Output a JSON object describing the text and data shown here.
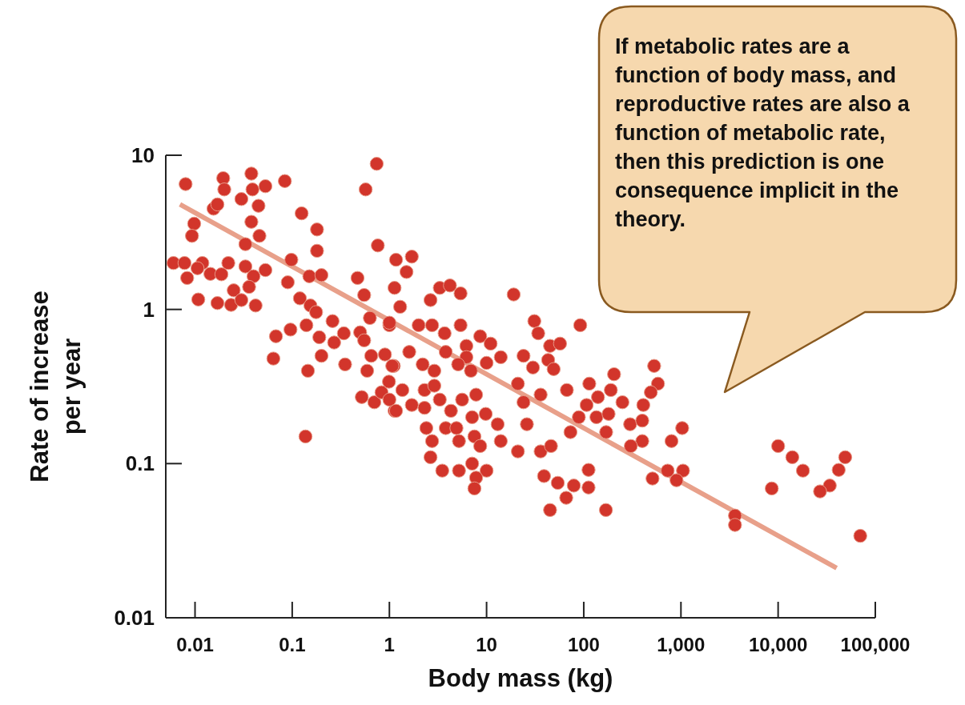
{
  "chart_data": {
    "type": "scatter",
    "xlabel": "Body mass (kg)",
    "ylabel": "Rate of increase per year",
    "annotations": [
      "If metabolic rates are a function of body mass, and reproductive rates are also a function of metabolic rate, then this prediction is one consequence implicit in the theory."
    ],
    "log": "xy",
    "xlim": [
      0.005,
      100000
    ],
    "ylim": [
      0.01,
      10
    ],
    "xticks": [
      0.01,
      0.1,
      1,
      10,
      100,
      {
        "value": 1000,
        "label": "1,000"
      },
      {
        "value": 10000,
        "label": "10,000"
      },
      {
        "value": 100000,
        "label": "100,000"
      }
    ],
    "yticks": [
      0.01,
      0.1,
      1,
      10
    ],
    "series": [
      {
        "marker": "circle",
        "color": "#d2352b",
        "x": [
          0.008,
          0.0195,
          0.02,
          0.038,
          0.039,
          0.053,
          0.084,
          0.03,
          0.0155,
          0.017,
          0.045,
          0.125,
          0.038,
          0.0098,
          0.0093,
          0.046,
          0.18,
          0.033,
          0.18,
          0.74,
          0.57,
          0.76,
          0.098,
          0.006,
          0.0078,
          0.0119,
          0.022,
          0.0106,
          0.0144,
          0.0187,
          0.033,
          0.053,
          0.04,
          0.0083,
          0.09,
          0.15,
          0.2,
          0.47,
          0.036,
          0.025,
          0.0108,
          0.017,
          0.0235,
          0.03,
          0.042,
          0.12,
          0.55,
          0.154,
          0.176,
          0.26,
          0.63,
          1.0,
          0.096,
          0.14,
          0.068,
          0.19,
          0.27,
          0.34,
          0.5,
          0.55,
          0.064,
          0.2,
          0.35,
          0.65,
          0.9,
          0.145,
          0.59,
          1.11,
          0.137,
          0.52,
          0.7,
          1.13,
          0.83,
          0.99,
          1.17,
          1.7,
          1.5,
          1.13,
          2.65,
          3.3,
          4.2,
          5.4,
          19,
          1.0,
          1.29,
          2.0,
          2.75,
          3.7,
          5.4,
          8.6,
          11,
          31,
          92,
          34,
          45,
          57,
          1.6,
          3.8,
          6.2,
          6.2,
          10,
          14,
          24,
          43,
          2.2,
          5.1,
          6.9,
          2.9,
          49,
          21,
          30,
          36,
          1.07,
          1.36,
          2.3,
          2.9,
          1.0,
          1.17,
          1.7,
          2.3,
          3.3,
          4.3,
          5.6,
          7.8,
          3.8,
          4.9,
          5.2,
          7.1,
          9.8,
          13,
          7.5,
          8.6,
          14,
          24,
          26,
          2.4,
          2.75,
          2.65,
          3.5,
          5.2,
          7.1,
          10,
          7.8,
          7.5,
          21,
          36,
          46,
          39,
          54,
          79,
          112,
          112,
          66,
          45,
          169,
          530,
          205,
          580,
          114,
          190,
          67,
          490,
          140,
          250,
          410,
          107,
          89,
          135,
          180,
          300,
          400,
          170,
          73,
          1030,
          400,
          305,
          800,
          10000,
          14000,
          18000,
          49000,
          42000,
          34000,
          27000,
          8600,
          510,
          730,
          1050,
          900,
          3600,
          3600,
          70000
        ],
        "values": [
          6.5,
          7.1,
          6.0,
          7.6,
          6.0,
          6.3,
          6.8,
          5.2,
          4.5,
          4.8,
          4.7,
          4.2,
          3.7,
          3.6,
          3.0,
          3.0,
          3.3,
          2.65,
          2.4,
          8.8,
          6.0,
          2.6,
          2.1,
          2.0,
          2.0,
          2.0,
          2.0,
          1.85,
          1.7,
          1.69,
          1.9,
          1.8,
          1.64,
          1.6,
          1.5,
          1.64,
          1.67,
          1.6,
          1.4,
          1.33,
          1.16,
          1.1,
          1.07,
          1.15,
          1.06,
          1.18,
          1.24,
          1.06,
          0.96,
          0.84,
          0.88,
          0.79,
          0.74,
          0.79,
          0.67,
          0.66,
          0.61,
          0.7,
          0.71,
          0.63,
          0.48,
          0.5,
          0.44,
          0.5,
          0.51,
          0.4,
          0.4,
          0.43,
          0.15,
          0.27,
          0.25,
          0.22,
          0.29,
          0.34,
          2.1,
          2.2,
          1.75,
          1.38,
          1.15,
          1.38,
          1.43,
          1.27,
          1.25,
          0.82,
          1.04,
          0.79,
          0.79,
          0.7,
          0.79,
          0.67,
          0.6,
          0.84,
          0.79,
          0.7,
          0.58,
          0.6,
          0.53,
          0.53,
          0.58,
          0.49,
          0.45,
          0.49,
          0.5,
          0.47,
          0.44,
          0.44,
          0.4,
          0.4,
          0.41,
          0.33,
          0.42,
          0.28,
          0.43,
          0.3,
          0.3,
          0.32,
          0.26,
          0.22,
          0.24,
          0.23,
          0.26,
          0.22,
          0.26,
          0.28,
          0.17,
          0.17,
          0.14,
          0.2,
          0.21,
          0.18,
          0.15,
          0.13,
          0.14,
          0.25,
          0.18,
          0.17,
          0.14,
          0.11,
          0.09,
          0.09,
          0.1,
          0.09,
          0.081,
          0.069,
          0.12,
          0.12,
          0.13,
          0.083,
          0.075,
          0.072,
          0.091,
          0.07,
          0.06,
          0.05,
          0.05,
          0.43,
          0.38,
          0.33,
          0.33,
          0.3,
          0.3,
          0.29,
          0.27,
          0.25,
          0.24,
          0.24,
          0.2,
          0.2,
          0.21,
          0.18,
          0.19,
          0.16,
          0.16,
          0.17,
          0.14,
          0.13,
          0.14,
          0.13,
          0.11,
          0.09,
          0.11,
          0.091,
          0.072,
          0.066,
          0.069,
          0.08,
          0.09,
          0.09,
          0.078,
          0.046,
          0.04,
          0.034
        ]
      },
      {
        "type": "line",
        "color": "#e8a08a",
        "x": [
          0.007,
          40000
        ],
        "values": [
          4.8,
          0.021
        ]
      }
    ]
  }
}
